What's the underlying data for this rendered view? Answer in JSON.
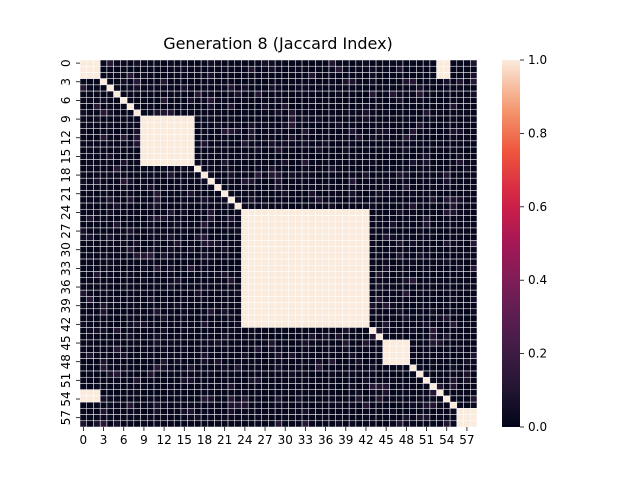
{
  "chart_data": {
    "type": "heatmap",
    "title": "Generation 8 (Jaccard Index)",
    "xlabel": "",
    "ylabel": "",
    "size": 59,
    "tick_step": 3,
    "x_tick_labels": [
      "0",
      "3",
      "6",
      "9",
      "12",
      "15",
      "18",
      "21",
      "24",
      "27",
      "30",
      "33",
      "36",
      "39",
      "42",
      "45",
      "48",
      "51",
      "54",
      "57"
    ],
    "y_tick_labels": [
      "0",
      "3",
      "6",
      "9",
      "12",
      "15",
      "18",
      "21",
      "24",
      "27",
      "30",
      "33",
      "36",
      "39",
      "42",
      "45",
      "48",
      "51",
      "54",
      "57"
    ],
    "value_range": [
      0,
      1
    ],
    "colorbar_ticks": [
      "0.0",
      "0.2",
      "0.4",
      "0.6",
      "0.8",
      "1.0"
    ],
    "colormap": "rocket",
    "grid_line_color": "#ffffff",
    "blocks_value_1": [
      {
        "rows": [
          0,
          2
        ],
        "cols": [
          0,
          2
        ]
      },
      {
        "rows": [
          0,
          2
        ],
        "cols": [
          53,
          54
        ]
      },
      {
        "rows": [
          53,
          54
        ],
        "cols": [
          0,
          2
        ]
      },
      {
        "rows": [
          9,
          16
        ],
        "cols": [
          9,
          16
        ]
      },
      {
        "rows": [
          24,
          42
        ],
        "cols": [
          24,
          42
        ]
      },
      {
        "rows": [
          45,
          48
        ],
        "cols": [
          45,
          48
        ]
      },
      {
        "rows": [
          56,
          58
        ],
        "cols": [
          56,
          58
        ]
      },
      {
        "diagonal": true
      }
    ],
    "background_value_range": [
      0.0,
      0.2
    ]
  }
}
